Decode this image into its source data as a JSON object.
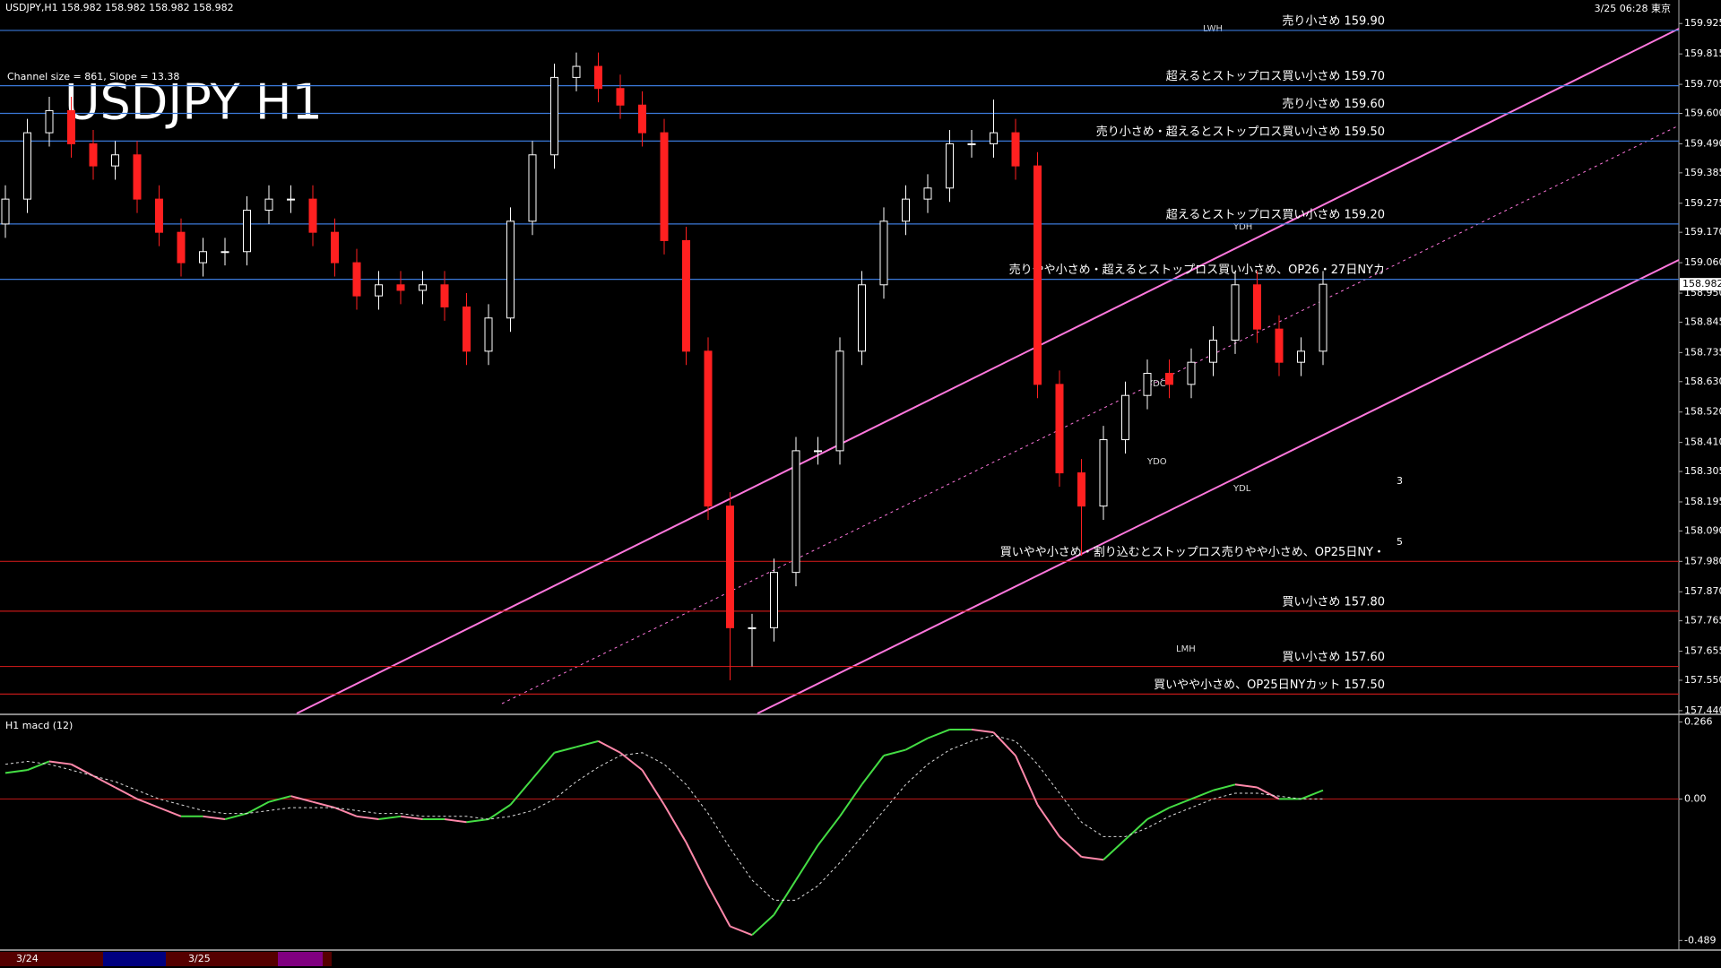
{
  "chart_data": [
    {
      "type": "candlestick",
      "title": "USDJPY H1",
      "header": "USDJPY,H1  158.982 158.982 158.982 158.982",
      "subtitle": "Channel size = 861, Slope = 13.38",
      "timestamp": "3/25 06:28 東京",
      "date_labels": [
        "3/24",
        "3/25"
      ],
      "markers": [
        "LWH",
        "YDH",
        "YDC",
        "YDO",
        "YDL",
        "LMH",
        "3",
        "5"
      ],
      "up_color": "#ffffff",
      "down_color": "#ff2020",
      "last_price": 158.982,
      "ylim": [
        157.43,
        160.01
      ],
      "yticks": [
        159.925,
        159.815,
        159.705,
        {
          "value": 159.6,
          "label": "159.600"
        },
        {
          "value": 159.49,
          "label": "159.490"
        },
        159.385,
        159.275,
        {
          "value": 159.17,
          "label": "159.170"
        },
        {
          "value": 159.06,
          "label": "159.060"
        },
        {
          "value": 158.95,
          "label": "158.950"
        },
        158.845,
        158.735,
        {
          "value": 158.63,
          "label": "158.630"
        },
        {
          "value": 158.52,
          "label": "158.520"
        },
        {
          "value": 158.41,
          "label": "158.410"
        },
        158.305,
        158.195,
        {
          "value": 158.09,
          "label": "158.090"
        },
        {
          "value": 157.98,
          "label": "157.980"
        },
        {
          "value": 157.87,
          "label": "157.870"
        },
        157.765,
        157.655,
        {
          "value": 157.55,
          "label": "157.550"
        },
        {
          "value": 157.44,
          "label": "157.440"
        }
      ],
      "levels": [
        {
          "value": 159.9,
          "label": "売り小さめ 159.90",
          "color": "#3a78d8"
        },
        {
          "value": 159.7,
          "label": "超えるとストップロス買い小さめ 159.70",
          "color": "#3a78d8"
        },
        {
          "value": 159.6,
          "label": "売り小さめ 159.60",
          "color": "#3a78d8"
        },
        {
          "value": 159.5,
          "label": "売り小さめ・超えるとストップロス買い小さめ 159.50",
          "color": "#3a78d8"
        },
        {
          "value": 159.2,
          "label": "超えるとストップロス買い小さめ 159.20",
          "color": "#3a78d8"
        },
        {
          "value": 159.0,
          "label": "売りやや小さめ・超えるとストップロス買い小さめ、OP26・27日NYカ",
          "color": "#3a78d8"
        },
        {
          "value": 157.98,
          "label": "買いやや小さめ・割り込むとストップロス売りやや小さめ、OP25日NY・",
          "color": "#c01818"
        },
        {
          "value": 157.8,
          "label": "買い小さめ 157.80",
          "color": "#c01818"
        },
        {
          "value": 157.6,
          "label": "買い小さめ 157.60",
          "color": "#c01818"
        },
        {
          "value": 157.5,
          "label": "買いやや小さめ、OP25日NYカット 157.50",
          "color": "#c01818"
        }
      ],
      "open": [
        159.2,
        159.29,
        159.53,
        159.61,
        159.49,
        159.41,
        159.45,
        159.29,
        159.17,
        159.06,
        159.1,
        159.1,
        159.25,
        159.29,
        159.29,
        159.17,
        159.06,
        158.94,
        158.98,
        158.96,
        158.98,
        158.9,
        158.74,
        158.86,
        159.21,
        159.45,
        159.73,
        159.77,
        159.69,
        159.63,
        159.53,
        159.14,
        158.74,
        158.18,
        157.74,
        157.74,
        157.94,
        158.38,
        158.38,
        158.74,
        158.98,
        159.21,
        159.29,
        159.33,
        159.49,
        159.49,
        159.53,
        159.41,
        158.62,
        158.3,
        158.18,
        158.42,
        158.58,
        158.66,
        158.62,
        158.7,
        158.78,
        158.98,
        158.82,
        158.7,
        158.74
      ],
      "high": [
        159.34,
        159.58,
        159.66,
        159.66,
        159.54,
        159.5,
        159.5,
        159.34,
        159.22,
        159.15,
        159.15,
        159.3,
        159.34,
        159.34,
        159.34,
        159.22,
        159.11,
        159.03,
        159.03,
        159.03,
        159.03,
        158.95,
        158.91,
        159.26,
        159.5,
        159.78,
        159.82,
        159.82,
        159.74,
        159.68,
        159.58,
        159.19,
        158.79,
        158.23,
        157.79,
        157.99,
        158.43,
        158.43,
        158.79,
        159.03,
        159.26,
        159.34,
        159.38,
        159.54,
        159.54,
        159.65,
        159.58,
        159.46,
        158.67,
        158.35,
        158.47,
        158.63,
        158.71,
        158.71,
        158.75,
        158.83,
        159.03,
        159.03,
        158.87,
        158.79,
        159.03
      ],
      "low": [
        159.15,
        159.24,
        159.48,
        159.44,
        159.36,
        159.36,
        159.24,
        159.12,
        159.01,
        159.01,
        159.05,
        159.05,
        159.2,
        159.24,
        159.12,
        159.01,
        158.89,
        158.89,
        158.91,
        158.91,
        158.85,
        158.69,
        158.69,
        158.81,
        159.16,
        159.4,
        159.68,
        159.64,
        159.58,
        159.48,
        159.09,
        158.69,
        158.13,
        157.55,
        157.6,
        157.69,
        157.89,
        158.33,
        158.33,
        158.69,
        158.93,
        159.16,
        159.24,
        159.28,
        159.44,
        159.44,
        159.36,
        158.57,
        158.25,
        158.0,
        158.13,
        158.37,
        158.53,
        158.57,
        158.57,
        158.65,
        158.73,
        158.77,
        158.65,
        158.65,
        158.69
      ],
      "close": [
        159.29,
        159.53,
        159.61,
        159.49,
        159.41,
        159.45,
        159.29,
        159.17,
        159.06,
        159.1,
        159.1,
        159.25,
        159.29,
        159.29,
        159.17,
        159.06,
        158.94,
        158.98,
        158.96,
        158.98,
        158.9,
        158.74,
        158.86,
        159.21,
        159.45,
        159.73,
        159.77,
        159.69,
        159.63,
        159.53,
        159.14,
        158.74,
        158.18,
        157.74,
        157.74,
        157.94,
        158.38,
        158.38,
        158.74,
        158.98,
        159.21,
        159.29,
        159.33,
        159.49,
        159.49,
        159.53,
        159.41,
        158.62,
        158.3,
        158.18,
        158.42,
        158.58,
        158.66,
        158.62,
        158.7,
        158.78,
        158.98,
        158.82,
        158.7,
        158.74,
        158.982
      ]
    },
    {
      "type": "line",
      "title": "H1  macd (12)",
      "ylim": [
        -0.519,
        0.277
      ],
      "yticks": [
        0.266,
        {
          "value": 0,
          "label": "0.00"
        },
        -0.489
      ],
      "zero_color": "#c01818",
      "series": [
        {
          "color": "#ff88aa",
          "up_color": "#44dd44",
          "values": [
            0.09,
            0.1,
            0.13,
            0.12,
            0.08,
            0.04,
            0.0,
            -0.03,
            -0.06,
            -0.06,
            -0.07,
            -0.05,
            -0.01,
            0.01,
            -0.01,
            -0.03,
            -0.06,
            -0.07,
            -0.06,
            -0.07,
            -0.07,
            -0.08,
            -0.07,
            -0.02,
            0.07,
            0.16,
            0.18,
            0.2,
            0.16,
            0.1,
            -0.02,
            -0.15,
            -0.3,
            -0.44,
            -0.47,
            -0.4,
            -0.28,
            -0.16,
            -0.06,
            0.05,
            0.15,
            0.17,
            0.21,
            0.24,
            0.24,
            0.23,
            0.15,
            -0.02,
            -0.13,
            -0.2,
            -0.21,
            -0.14,
            -0.07,
            -0.03,
            0.0,
            0.03,
            0.05,
            0.04,
            0.0,
            0.0,
            0.03
          ]
        },
        {
          "color": "#dddddd",
          "dashed": true,
          "values": [
            0.12,
            0.13,
            0.12,
            0.1,
            0.08,
            0.06,
            0.03,
            0.0,
            -0.02,
            -0.04,
            -0.05,
            -0.05,
            -0.04,
            -0.03,
            -0.03,
            -0.03,
            -0.04,
            -0.05,
            -0.05,
            -0.06,
            -0.06,
            -0.06,
            -0.07,
            -0.06,
            -0.04,
            0.0,
            0.06,
            0.11,
            0.15,
            0.16,
            0.12,
            0.05,
            -0.05,
            -0.17,
            -0.28,
            -0.35,
            -0.35,
            -0.3,
            -0.22,
            -0.13,
            -0.04,
            0.05,
            0.12,
            0.17,
            0.2,
            0.22,
            0.2,
            0.12,
            0.02,
            -0.08,
            -0.13,
            -0.13,
            -0.1,
            -0.06,
            -0.03,
            0.0,
            0.02,
            0.02,
            0.01,
            0.0,
            0.0
          ]
        }
      ]
    }
  ]
}
